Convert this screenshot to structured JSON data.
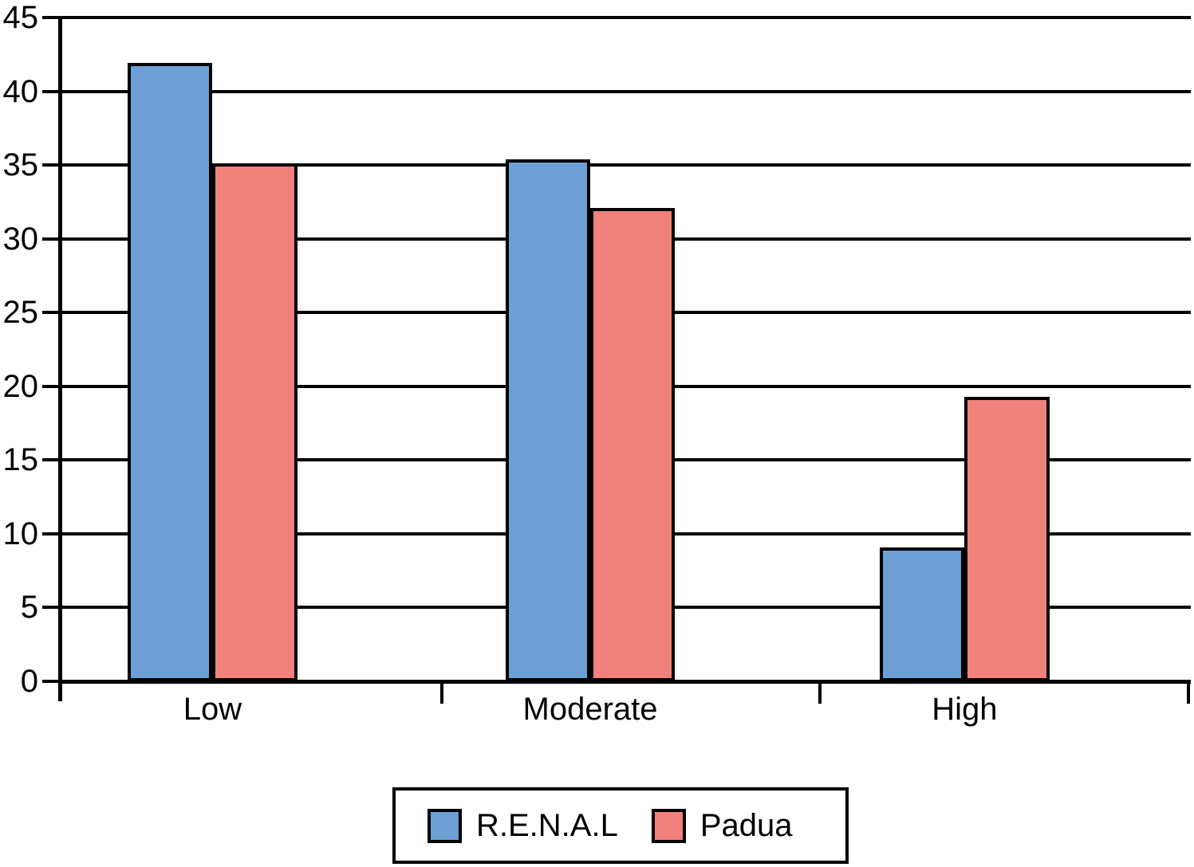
{
  "chart_data": {
    "type": "bar",
    "title": "",
    "xlabel": "",
    "ylabel": "",
    "categories": [
      "Low",
      "Moderate",
      "High"
    ],
    "series": [
      {
        "name": "R.E.N.A.L",
        "color": "#6C9FD3",
        "values": [
          41.9,
          35.4,
          9.1
        ]
      },
      {
        "name": "Padua",
        "color": "#F0827B",
        "values": [
          35.1,
          32.1,
          19.3
        ]
      }
    ],
    "ylim": [
      0,
      45
    ],
    "yticks": [
      0,
      5,
      10,
      15,
      20,
      25,
      30,
      35,
      40,
      45
    ],
    "grid": true,
    "legend_position": "bottom-center",
    "layout_hints": {
      "group_centers_pct": [
        13.5,
        46.9,
        80.0
      ],
      "bar_width_pct": 7.5,
      "category_boundary_ticks_pct": [
        33.8,
        67.2,
        99.8
      ],
      "axis_color": "#000000",
      "background": "#FFFFFF"
    }
  }
}
